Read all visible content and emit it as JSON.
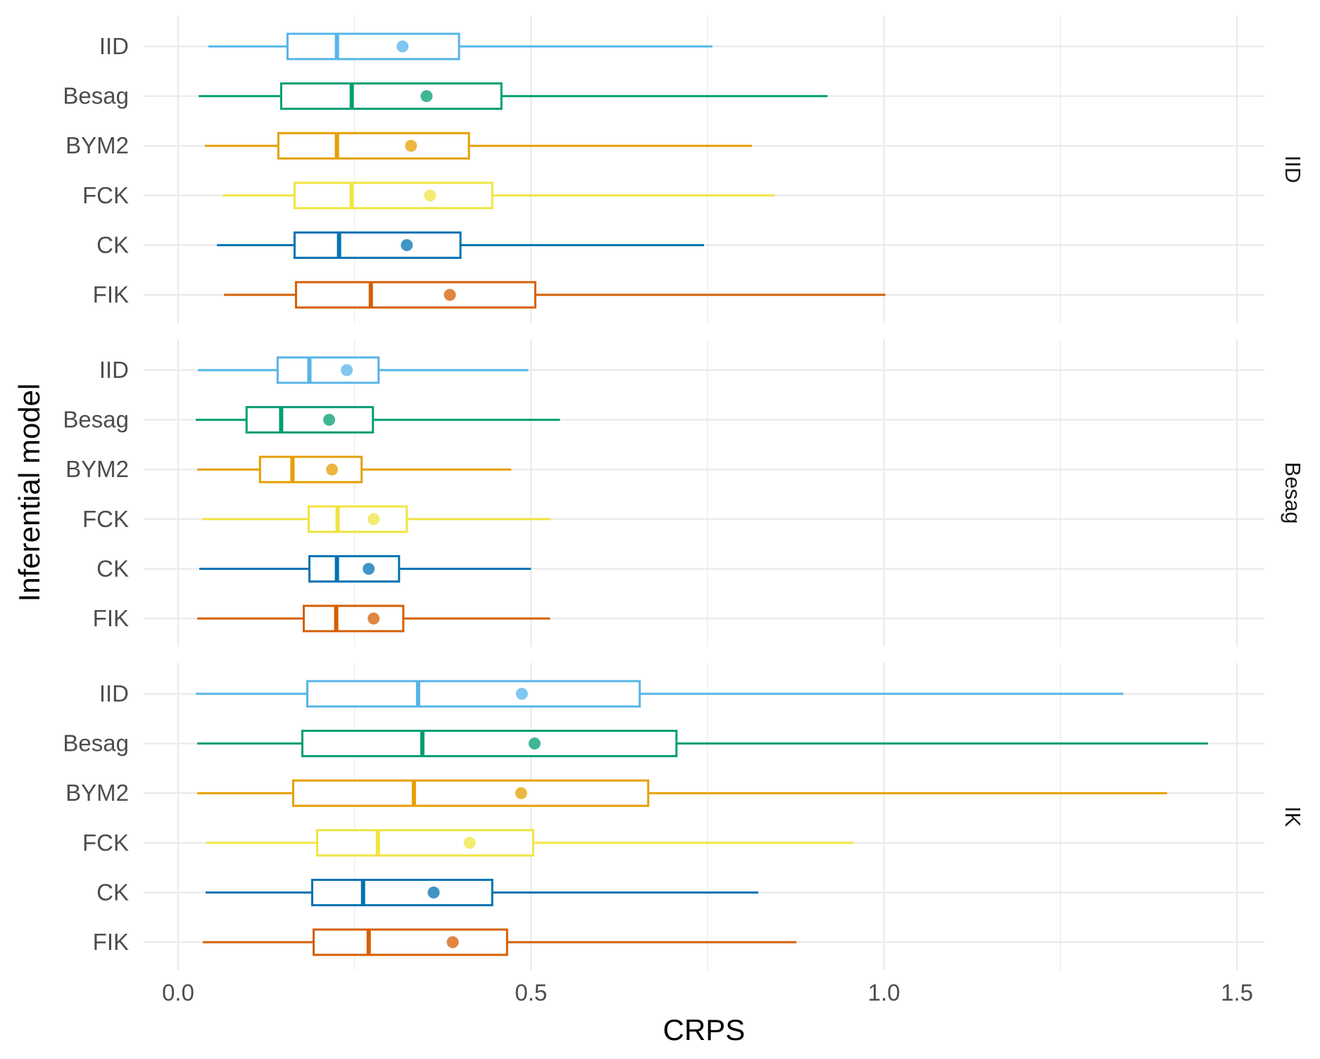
{
  "chart_data": {
    "type": "boxplot",
    "xlabel": "CRPS",
    "ylabel": "Inferential model",
    "xlim": [
      -0.05,
      1.55
    ],
    "x_ticks": [
      "0.0",
      "0.5",
      "1.0",
      "1.5"
    ],
    "x_tick_values": [
      0,
      0.5,
      1.0,
      1.5
    ],
    "grid": true,
    "categories": [
      "IID",
      "Besag",
      "BYM2",
      "FCK",
      "CK",
      "FIK"
    ],
    "colors": {
      "IID": "#56B4E9",
      "Besag": "#009E73",
      "BYM2": "#E69F00",
      "FCK": "#F0E442",
      "CK": "#0072B2",
      "FIK": "#D55E00"
    },
    "panels": [
      {
        "strip": "IID",
        "boxes": [
          {
            "model": "IID",
            "whisker_low": 0.043,
            "q1": 0.155,
            "median": 0.225,
            "q3": 0.398,
            "whisker_high": 0.757,
            "mean": 0.318
          },
          {
            "model": "Besag",
            "whisker_low": 0.029,
            "q1": 0.146,
            "median": 0.246,
            "q3": 0.458,
            "whisker_high": 0.92,
            "mean": 0.352
          },
          {
            "model": "BYM2",
            "whisker_low": 0.038,
            "q1": 0.142,
            "median": 0.225,
            "q3": 0.412,
            "whisker_high": 0.813,
            "mean": 0.33
          },
          {
            "model": "FCK",
            "whisker_low": 0.063,
            "q1": 0.165,
            "median": 0.246,
            "q3": 0.445,
            "whisker_high": 0.845,
            "mean": 0.357
          },
          {
            "model": "CK",
            "whisker_low": 0.055,
            "q1": 0.165,
            "median": 0.228,
            "q3": 0.4,
            "whisker_high": 0.745,
            "mean": 0.324
          },
          {
            "model": "FIK",
            "whisker_low": 0.065,
            "q1": 0.167,
            "median": 0.273,
            "q3": 0.506,
            "whisker_high": 1.002,
            "mean": 0.385
          }
        ]
      },
      {
        "strip": "Besag",
        "boxes": [
          {
            "model": "IID",
            "whisker_low": 0.028,
            "q1": 0.141,
            "median": 0.186,
            "q3": 0.284,
            "whisker_high": 0.496,
            "mean": 0.239
          },
          {
            "model": "Besag",
            "whisker_low": 0.025,
            "q1": 0.097,
            "median": 0.146,
            "q3": 0.276,
            "whisker_high": 0.541,
            "mean": 0.214
          },
          {
            "model": "BYM2",
            "whisker_low": 0.027,
            "q1": 0.116,
            "median": 0.162,
            "q3": 0.26,
            "whisker_high": 0.472,
            "mean": 0.218
          },
          {
            "model": "FCK",
            "whisker_low": 0.034,
            "q1": 0.185,
            "median": 0.226,
            "q3": 0.324,
            "whisker_high": 0.528,
            "mean": 0.277
          },
          {
            "model": "CK",
            "whisker_low": 0.03,
            "q1": 0.186,
            "median": 0.225,
            "q3": 0.313,
            "whisker_high": 0.5,
            "mean": 0.27
          },
          {
            "model": "FIK",
            "whisker_low": 0.027,
            "q1": 0.178,
            "median": 0.224,
            "q3": 0.319,
            "whisker_high": 0.527,
            "mean": 0.277
          }
        ]
      },
      {
        "strip": "IK",
        "boxes": [
          {
            "model": "IID",
            "whisker_low": 0.025,
            "q1": 0.183,
            "median": 0.34,
            "q3": 0.654,
            "whisker_high": 1.339,
            "mean": 0.487
          },
          {
            "model": "Besag",
            "whisker_low": 0.027,
            "q1": 0.176,
            "median": 0.346,
            "q3": 0.706,
            "whisker_high": 1.459,
            "mean": 0.505
          },
          {
            "model": "BYM2",
            "whisker_low": 0.027,
            "q1": 0.163,
            "median": 0.334,
            "q3": 0.666,
            "whisker_high": 1.401,
            "mean": 0.486
          },
          {
            "model": "FCK",
            "whisker_low": 0.04,
            "q1": 0.197,
            "median": 0.283,
            "q3": 0.503,
            "whisker_high": 0.957,
            "mean": 0.413
          },
          {
            "model": "CK",
            "whisker_low": 0.039,
            "q1": 0.19,
            "median": 0.262,
            "q3": 0.445,
            "whisker_high": 0.822,
            "mean": 0.362
          },
          {
            "model": "FIK",
            "whisker_low": 0.035,
            "q1": 0.192,
            "median": 0.27,
            "q3": 0.466,
            "whisker_high": 0.876,
            "mean": 0.389
          }
        ]
      }
    ]
  }
}
